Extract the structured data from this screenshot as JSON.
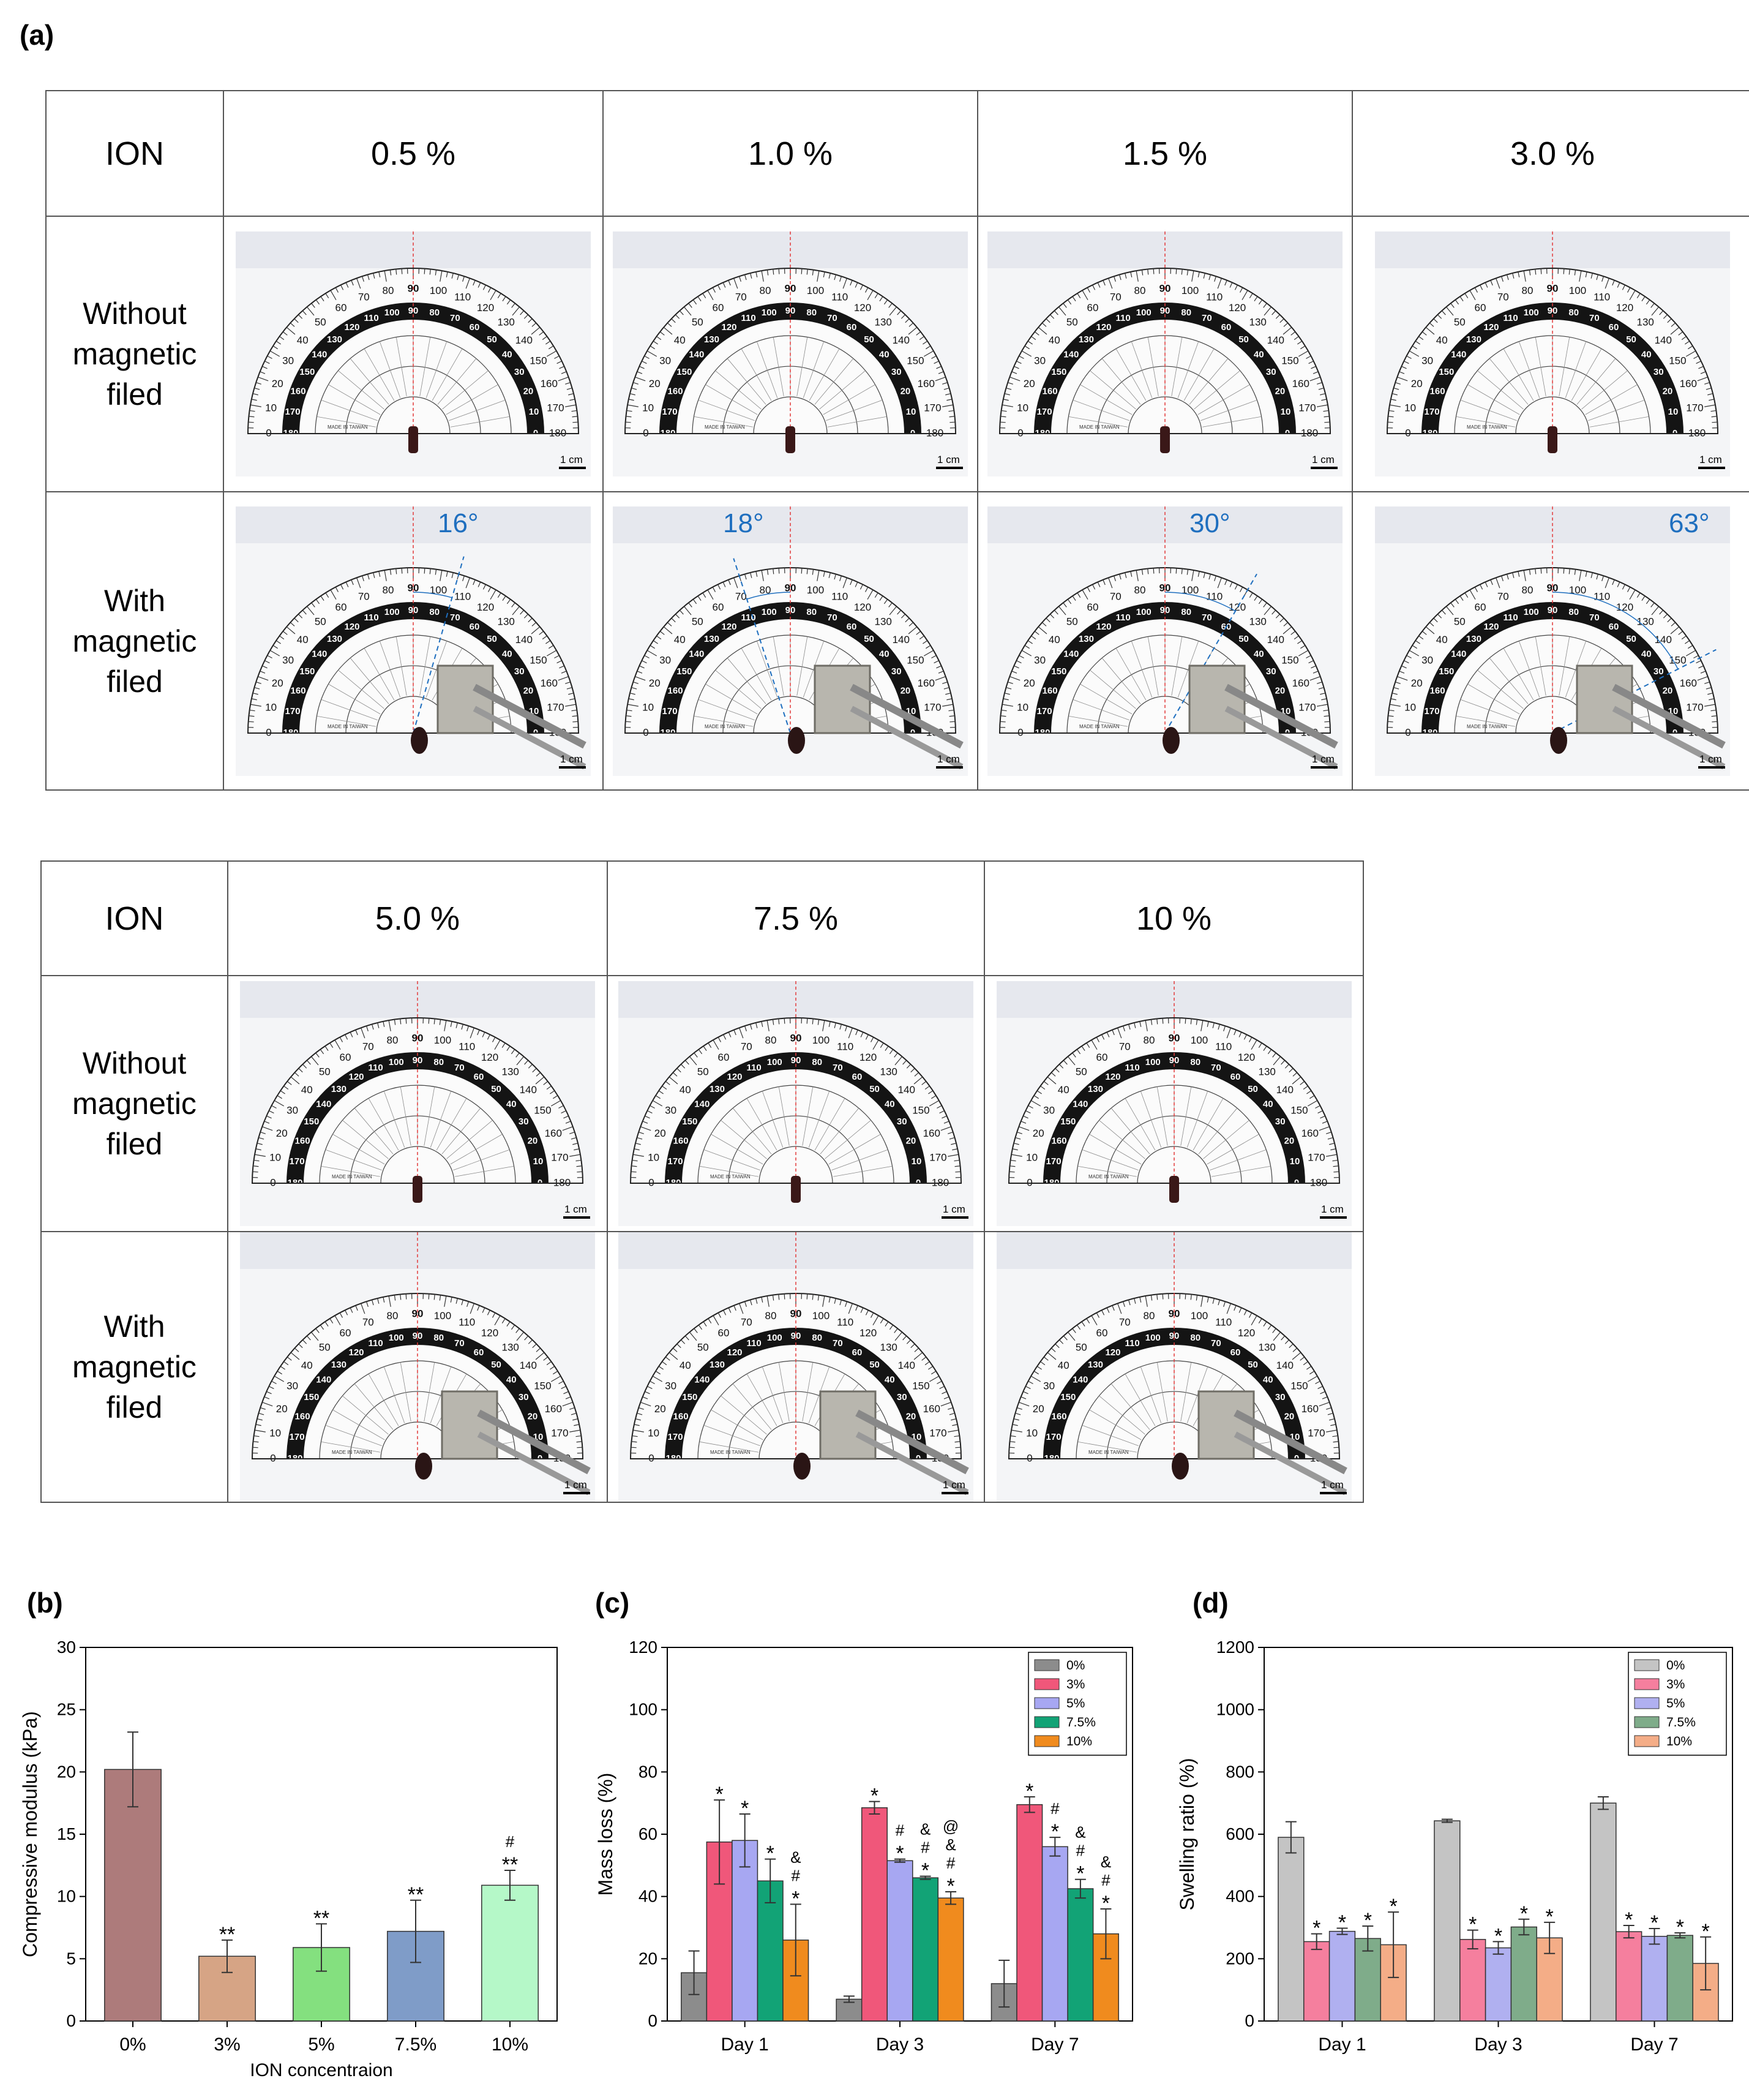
{
  "panel_a": {
    "label": "(a)",
    "row_labels": {
      "header": "ION",
      "without": [
        "Without",
        "magnetic",
        "filed"
      ],
      "with": [
        "With",
        "magnetic",
        "filed"
      ]
    },
    "scale_text": "1 cm",
    "table1": {
      "concentrations": [
        "0.5 %",
        "1.0 %",
        "1.5 %",
        "3.0 %"
      ],
      "angles": [
        "16°",
        "18°",
        "30°",
        "63°"
      ]
    },
    "table2": {
      "concentrations": [
        "5.0 %",
        "7.5 %",
        "10 %"
      ]
    },
    "protractor_numbers": [
      "0",
      "10",
      "20",
      "30",
      "40",
      "50",
      "60",
      "70",
      "80",
      "90",
      "100",
      "110",
      "120",
      "130",
      "140",
      "150",
      "160",
      "170",
      "180"
    ],
    "protractor_imprint": "MADE IN TAIWAN"
  },
  "chart_data": [
    {
      "panel": "(b)",
      "type": "bar",
      "categories": [
        "0%",
        "3%",
        "5%",
        "7.5%",
        "10%"
      ],
      "values": [
        20.2,
        5.2,
        5.9,
        7.2,
        10.9
      ],
      "errors": [
        3.0,
        1.3,
        1.9,
        2.5,
        1.2
      ],
      "annotations": [
        "",
        "**",
        "**",
        "**",
        "#\n**"
      ],
      "colors": [
        "#ad7b7b",
        "#d6a485",
        "#84e07f",
        "#7f9cc8",
        "#b5f8c8"
      ],
      "xlabel": "ION concentraion",
      "ylabel": "Compressive modulus (kPa)",
      "ylim": [
        0,
        30
      ],
      "yticks": [
        "0",
        "5",
        "10",
        "15",
        "20",
        "25",
        "30"
      ]
    },
    {
      "panel": "(c)",
      "type": "bar",
      "categories": [
        "Day 1",
        "Day 3",
        "Day 7"
      ],
      "series": [
        {
          "name": "0%",
          "color": "#8c8c8c",
          "values": [
            15.5,
            7.0,
            12.0
          ],
          "errors": [
            7.0,
            1.0,
            7.5
          ],
          "annotations": [
            "",
            "",
            ""
          ]
        },
        {
          "name": "3%",
          "color": "#f0577a",
          "values": [
            57.5,
            68.5,
            69.5
          ],
          "errors": [
            13.5,
            2.0,
            2.5
          ],
          "annotations": [
            "*",
            "*",
            "*"
          ]
        },
        {
          "name": "5%",
          "color": "#a7a7f2",
          "values": [
            58.0,
            51.5,
            56.0
          ],
          "errors": [
            8.5,
            0.5,
            3.0
          ],
          "annotations": [
            "*",
            "#\n*",
            "#\n*"
          ]
        },
        {
          "name": "7.5%",
          "color": "#12a376",
          "values": [
            45.0,
            46.0,
            42.5
          ],
          "errors": [
            7.0,
            0.5,
            3.0
          ],
          "annotations": [
            "*",
            "&\n#\n*",
            "&\n#\n*"
          ]
        },
        {
          "name": "10%",
          "color": "#f08b1e",
          "values": [
            26.0,
            39.5,
            28.0
          ],
          "errors": [
            11.5,
            2.0,
            8.0
          ],
          "annotations": [
            "&\n#\n*",
            "@\n&\n#\n*",
            "&\n#\n*"
          ]
        }
      ],
      "ylabel": "Mass loss (%)",
      "ylim": [
        0,
        120
      ],
      "yticks": [
        "0",
        "20",
        "40",
        "60",
        "80",
        "100",
        "120"
      ]
    },
    {
      "panel": "(d)",
      "type": "bar",
      "categories": [
        "Day 1",
        "Day 3",
        "Day 7"
      ],
      "series": [
        {
          "name": "0%",
          "color": "#c4c4c4",
          "values": [
            590,
            643,
            700
          ],
          "errors": [
            50,
            5,
            20
          ],
          "annotations": [
            "",
            "",
            ""
          ]
        },
        {
          "name": "3%",
          "color": "#f57f9e",
          "values": [
            255,
            262,
            287
          ],
          "errors": [
            25,
            30,
            20
          ],
          "annotations": [
            "*",
            "*",
            "*"
          ]
        },
        {
          "name": "5%",
          "color": "#b0b0f0",
          "values": [
            288,
            235,
            272
          ],
          "errors": [
            10,
            20,
            25
          ],
          "annotations": [
            "*",
            "*",
            "*"
          ]
        },
        {
          "name": "7.5%",
          "color": "#7fac8a",
          "values": [
            265,
            302,
            275
          ],
          "errors": [
            40,
            25,
            8
          ],
          "annotations": [
            "*",
            "*",
            "*"
          ]
        },
        {
          "name": "10%",
          "color": "#f4ad87",
          "values": [
            245,
            267,
            185
          ],
          "errors": [
            105,
            50,
            85
          ],
          "annotations": [
            "*",
            "*",
            "*"
          ]
        }
      ],
      "ylabel": "Swelling ratio (%)",
      "ylim": [
        0,
        1200
      ],
      "yticks": [
        "0",
        "200",
        "400",
        "600",
        "800",
        "1000",
        "1200"
      ]
    }
  ]
}
